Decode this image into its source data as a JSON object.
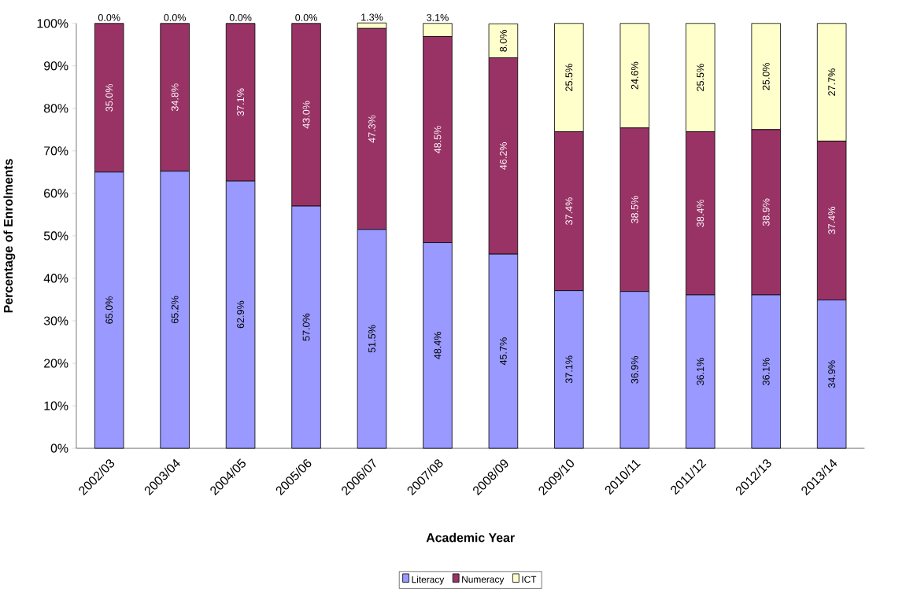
{
  "chart_data": {
    "type": "bar",
    "stacked": true,
    "xlabel": "Academic Year",
    "ylabel": "Percentage of Enrolments",
    "categories": [
      "2002/03",
      "2003/04",
      "2004/05",
      "2005/06",
      "2006/07",
      "2007/08",
      "2008/09",
      "2009/10",
      "2010/11",
      "2011/12",
      "2012/13",
      "2013/14"
    ],
    "series": [
      {
        "name": "Literacy",
        "color": "#9999ff",
        "values": [
          65.0,
          65.2,
          62.9,
          57.0,
          51.5,
          48.4,
          45.7,
          37.1,
          36.9,
          36.1,
          36.1,
          34.9
        ],
        "value_labels": [
          "65.0%",
          "65.2%",
          "62.9%",
          "57.0%",
          "51.5%",
          "48.4%",
          "45.7%",
          "37.1%",
          "36.9%",
          "36.1%",
          "36.1%",
          "34.9%"
        ]
      },
      {
        "name": "Numeracy",
        "color": "#993366",
        "values": [
          35.0,
          34.8,
          37.1,
          43.0,
          47.3,
          48.5,
          46.2,
          37.4,
          38.5,
          38.4,
          38.9,
          37.4
        ],
        "value_labels": [
          "35.0%",
          "34.8%",
          "37.1%",
          "43.0%",
          "47.3%",
          "48.5%",
          "46.2%",
          "37.4%",
          "38.5%",
          "38.4%",
          "38.9%",
          "37.4%"
        ]
      },
      {
        "name": "ICT",
        "color": "#ffffcc",
        "values": [
          0.0,
          0.0,
          0.0,
          0.0,
          1.3,
          3.1,
          8.0,
          25.5,
          24.6,
          25.5,
          25.0,
          27.7
        ],
        "value_labels": [
          "0.0%",
          "0.0%",
          "0.0%",
          "0.0%",
          "1.3%",
          "3.1%",
          "8.0%",
          "25.5%",
          "24.6%",
          "25.5%",
          "25.0%",
          "27.7%"
        ]
      }
    ],
    "ylim": [
      0,
      100
    ],
    "yticks": [
      {
        "value": 0,
        "label": "0%"
      },
      {
        "value": 10,
        "label": "10%"
      },
      {
        "value": 20,
        "label": "20%"
      },
      {
        "value": 30,
        "label": "30%"
      },
      {
        "value": 40,
        "label": "40%"
      },
      {
        "value": 50,
        "label": "50%"
      },
      {
        "value": 60,
        "label": "60%"
      },
      {
        "value": 70,
        "label": "70%"
      },
      {
        "value": 80,
        "label": "80%"
      },
      {
        "value": 90,
        "label": "90%"
      },
      {
        "value": 100,
        "label": "100%"
      }
    ],
    "grid": false,
    "legend": "bottom"
  }
}
